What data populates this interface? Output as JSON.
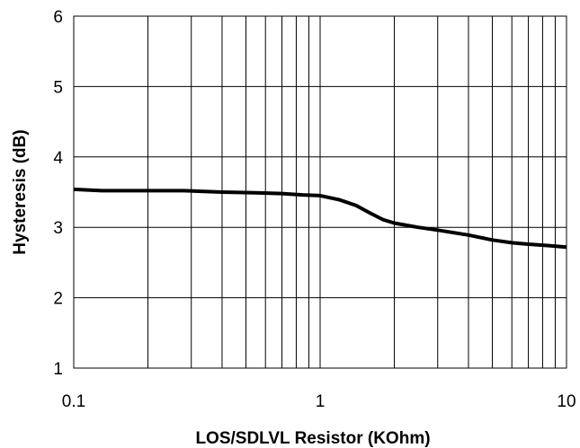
{
  "chart_data": {
    "type": "line",
    "title": "",
    "xlabel": "LOS/SDLVL Resistor (KOhm)",
    "ylabel": "Hysteresis (dB)",
    "xscale": "log",
    "xlim": [
      0.1,
      10
    ],
    "ylim": [
      1,
      6
    ],
    "grid": true,
    "legend": "none",
    "x_ticks": [
      "0.1",
      "1",
      "10"
    ],
    "y_ticks": [
      "1",
      "2",
      "3",
      "4",
      "5",
      "6"
    ],
    "series": [
      {
        "color": "#000000",
        "points": [
          [
            0.1,
            3.54
          ],
          [
            0.13,
            3.52
          ],
          [
            0.2,
            3.52
          ],
          [
            0.28,
            3.52
          ],
          [
            0.4,
            3.5
          ],
          [
            0.55,
            3.49
          ],
          [
            0.7,
            3.48
          ],
          [
            0.85,
            3.46
          ],
          [
            1.0,
            3.45
          ],
          [
            1.2,
            3.39
          ],
          [
            1.4,
            3.31
          ],
          [
            1.6,
            3.2
          ],
          [
            1.8,
            3.11
          ],
          [
            2.0,
            3.06
          ],
          [
            2.5,
            3.0
          ],
          [
            3.0,
            2.96
          ],
          [
            4.0,
            2.89
          ],
          [
            5.0,
            2.82
          ],
          [
            6.0,
            2.78
          ],
          [
            7.0,
            2.76
          ],
          [
            8.5,
            2.74
          ],
          [
            10.0,
            2.72
          ]
        ]
      }
    ]
  }
}
